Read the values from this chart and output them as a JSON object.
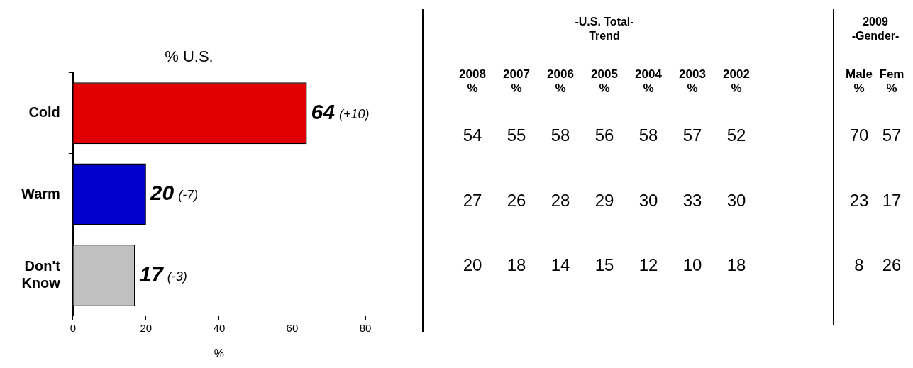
{
  "chart_data": [
    {
      "type": "bar",
      "orientation": "horizontal",
      "title": "% U.S.",
      "categories": [
        "Cold",
        "Warm",
        "Don't Know"
      ],
      "values": [
        64,
        20,
        17
      ],
      "colors": [
        "#e00000",
        "#0000cc",
        "#c0c0c0"
      ],
      "xlim": [
        0,
        80
      ],
      "xticks": [
        0,
        20,
        40,
        60,
        80
      ],
      "xlabel": "%",
      "value_labels": [
        "64 (+10)",
        "20 (-7)",
        "17 (-3)"
      ],
      "legend": false,
      "grid": false
    },
    {
      "type": "heatmap",
      "title": "-U.S. Total-\nTrend",
      "categories": [
        "2008 %",
        "2007 %",
        "2006 %",
        "2005 %",
        "2004 %",
        "2003 %",
        "2002 %"
      ],
      "y_categories": [
        null,
        null,
        null
      ],
      "tick_labels": "x",
      "data_labels": true,
      "cells": [
        [
          54,
          55,
          58,
          56,
          58,
          57,
          52
        ],
        [
          27,
          26,
          28,
          29,
          30,
          33,
          30
        ],
        [
          20,
          18,
          14,
          15,
          12,
          10,
          18
        ]
      ]
    },
    {
      "type": "heatmap",
      "title": "2009\n-Gender-",
      "categories": [
        "Male %",
        "Fem %"
      ],
      "y_categories": [
        null,
        null,
        null
      ],
      "tick_labels": "x",
      "data_labels": true,
      "cells": [
        [
          70,
          57
        ],
        [
          23,
          17
        ],
        [
          8,
          26
        ]
      ]
    }
  ]
}
